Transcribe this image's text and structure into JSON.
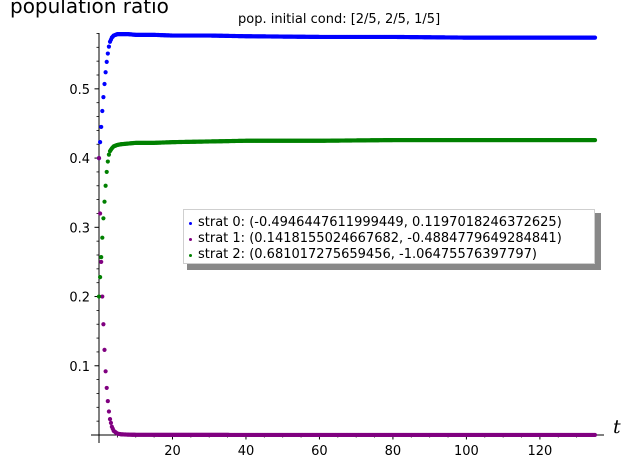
{
  "chart_data": {
    "type": "scatter",
    "title": "pop. initial cond: [2/5, 2/5, 1/5]",
    "ylabel": "population ratio",
    "xlabel": "t",
    "xlim": [
      0,
      135
    ],
    "ylim": [
      0,
      0.585
    ],
    "x_ticks": [
      20,
      40,
      60,
      80,
      100,
      120
    ],
    "y_ticks": [
      0.1,
      0.2,
      0.3,
      0.4,
      0.5
    ],
    "legend_position": "center-right",
    "series": [
      {
        "name": "strat 0: (-0.4946447611999449, 0.1197018246372625)",
        "color": "#0000ff",
        "x": [
          0,
          0.3,
          0.6,
          0.9,
          1.2,
          1.5,
          1.8,
          2.1,
          2.4,
          2.7,
          3.0,
          3.5,
          4,
          5,
          6,
          8,
          10,
          15,
          20,
          30,
          40,
          60,
          80,
          100,
          120,
          135
        ],
        "y": [
          0.4,
          0.423,
          0.445,
          0.468,
          0.488,
          0.507,
          0.524,
          0.539,
          0.551,
          0.561,
          0.568,
          0.574,
          0.577,
          0.579,
          0.579,
          0.579,
          0.578,
          0.578,
          0.577,
          0.577,
          0.576,
          0.575,
          0.575,
          0.574,
          0.574,
          0.574
        ]
      },
      {
        "name": "strat 1: (0.1418155024667682, -0.4884779649284841)",
        "color": "#800080",
        "x": [
          0,
          0.3,
          0.6,
          0.9,
          1.2,
          1.5,
          1.8,
          2.1,
          2.4,
          2.7,
          3.0,
          3.5,
          4,
          5,
          6,
          8,
          10,
          20,
          40,
          60,
          80,
          100,
          120,
          135
        ],
        "y": [
          0.4,
          0.32,
          0.25,
          0.2,
          0.16,
          0.123,
          0.092,
          0.068,
          0.049,
          0.034,
          0.023,
          0.012,
          0.006,
          0.002,
          0.001,
          0.0005,
          0.0003,
          0.0002,
          0.0001,
          0.0001,
          0.0001,
          0.0001,
          0.0001,
          0.0001
        ]
      },
      {
        "name": "strat 2: (0.681017275659456, -1.06475576397797)",
        "color": "#008000",
        "x": [
          0,
          0.3,
          0.6,
          0.9,
          1.2,
          1.5,
          1.8,
          2.1,
          2.4,
          2.7,
          3.0,
          3.5,
          4,
          5,
          6,
          8,
          10,
          15,
          20,
          30,
          40,
          60,
          80,
          100,
          120,
          135
        ],
        "y": [
          0.2,
          0.228,
          0.257,
          0.285,
          0.313,
          0.337,
          0.36,
          0.38,
          0.395,
          0.405,
          0.41,
          0.414,
          0.417,
          0.419,
          0.42,
          0.421,
          0.422,
          0.422,
          0.423,
          0.424,
          0.425,
          0.425,
          0.426,
          0.426,
          0.426,
          0.426
        ]
      }
    ]
  }
}
